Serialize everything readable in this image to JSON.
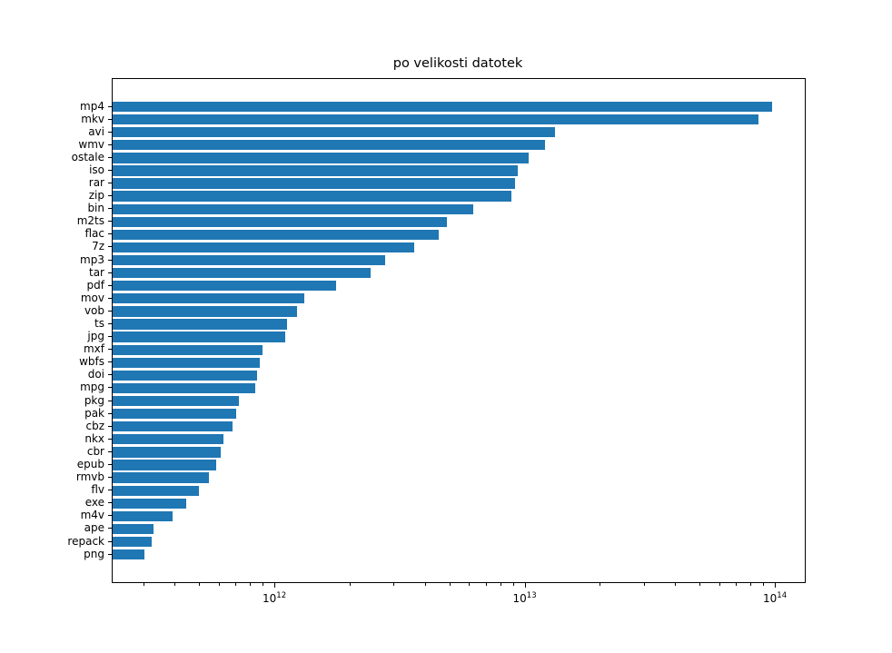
{
  "chart_data": {
    "type": "bar",
    "orientation": "horizontal",
    "title": "po velikosti datotek",
    "xlabel": "",
    "ylabel": "",
    "xscale": "log",
    "xlim": [
      224000000000.0,
      130700000000000.0
    ],
    "grid": false,
    "legend": null,
    "bar_color": "#1f77b4",
    "x_tick_exponents": [
      12,
      13,
      14
    ],
    "categories": [
      "mp4",
      "mkv",
      "avi",
      "wmv",
      "ostale",
      "iso",
      "rar",
      "zip",
      "bin",
      "m2ts",
      "flac",
      "7z",
      "mp3",
      "tar",
      "pdf",
      "mov",
      "vob",
      "ts",
      "jpg",
      "mxf",
      "wbfs",
      "doi",
      "mpg",
      "pkg",
      "pak",
      "cbz",
      "nkx",
      "cbr",
      "epub",
      "rmvb",
      "flv",
      "exe",
      "m4v",
      "ape",
      "repack",
      "png"
    ],
    "values": [
      97000000000000.0,
      85000000000000.0,
      13100000000000.0,
      12000000000000.0,
      10300000000000.0,
      9300000000000.0,
      9100000000000.0,
      8800000000000.0,
      6200000000000.0,
      4850000000000.0,
      4500000000000.0,
      3600000000000.0,
      2750000000000.0,
      2400000000000.0,
      1750000000000.0,
      1310000000000.0,
      1220000000000.0,
      1110000000000.0,
      1100000000000.0,
      890000000000.0,
      870000000000.0,
      845000000000.0,
      830000000000.0,
      715000000000.0,
      700000000000.0,
      675000000000.0,
      620000000000.0,
      605000000000.0,
      580000000000.0,
      545000000000.0,
      495000000000.0,
      440000000000.0,
      390000000000.0,
      325000000000.0,
      320000000000.0,
      300000000000.0
    ]
  }
}
